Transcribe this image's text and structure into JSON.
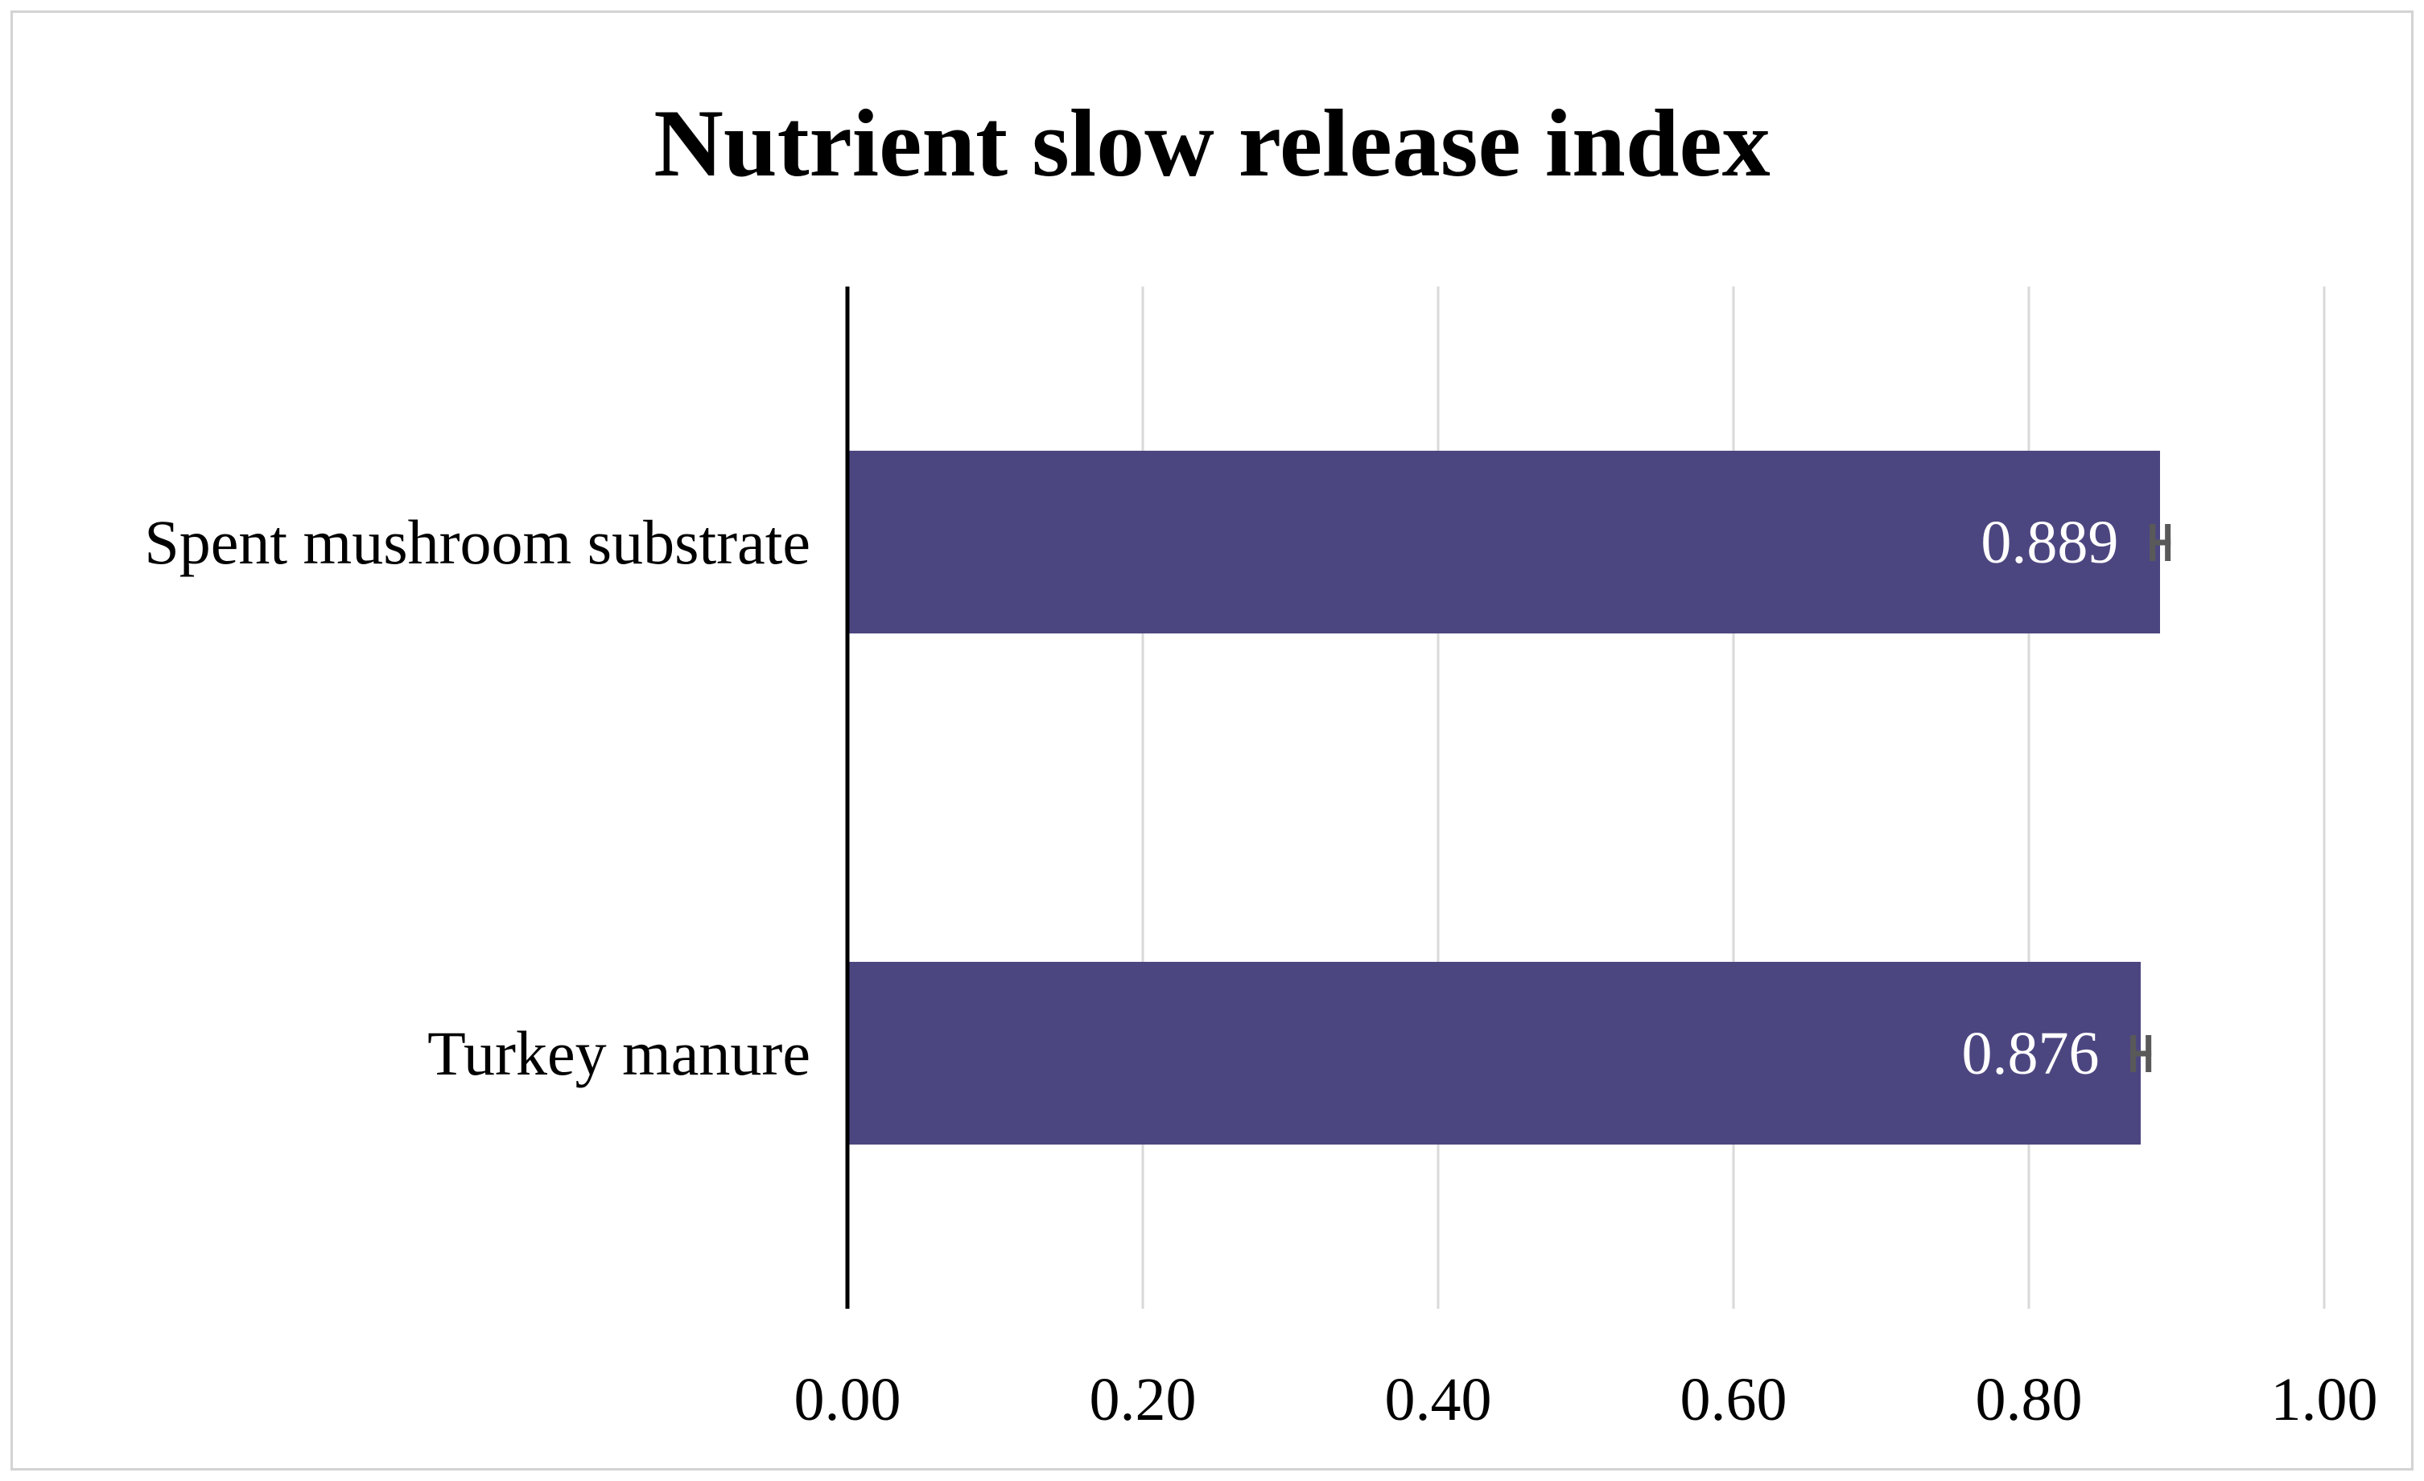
{
  "figure": {
    "background_color": "#FFFFFF",
    "border_color": "#D3D3D3"
  },
  "chart_data": {
    "type": "bar",
    "orientation": "horizontal",
    "title": "Nutrient slow release index",
    "categories": [
      "Spent mushroom substrate",
      "Turkey manure"
    ],
    "values": [
      0.889,
      0.876
    ],
    "value_labels": [
      "0.889",
      "0.876"
    ],
    "errors": [
      0.007,
      0.007
    ],
    "xlabel": "",
    "ylabel": "",
    "xlim": [
      0,
      1.0
    ],
    "x_ticks": [
      {
        "label": "0.00",
        "value": 0.0
      },
      {
        "label": "0.20",
        "value": 0.2
      },
      {
        "label": "0.40",
        "value": 0.4
      },
      {
        "label": "0.60",
        "value": 0.6
      },
      {
        "label": "0.80",
        "value": 0.8
      },
      {
        "label": "1.00",
        "value": 1.0
      }
    ],
    "grid": true,
    "legend": "none",
    "colors": {
      "bar": "#4C4680",
      "error_bar": "#595959",
      "gridline": "#D9D9D9",
      "axis": "#000000",
      "title_text": "#000000",
      "tick_text": "#000000",
      "category_text": "#000000",
      "value_label_text": "#FFFFFF"
    }
  }
}
